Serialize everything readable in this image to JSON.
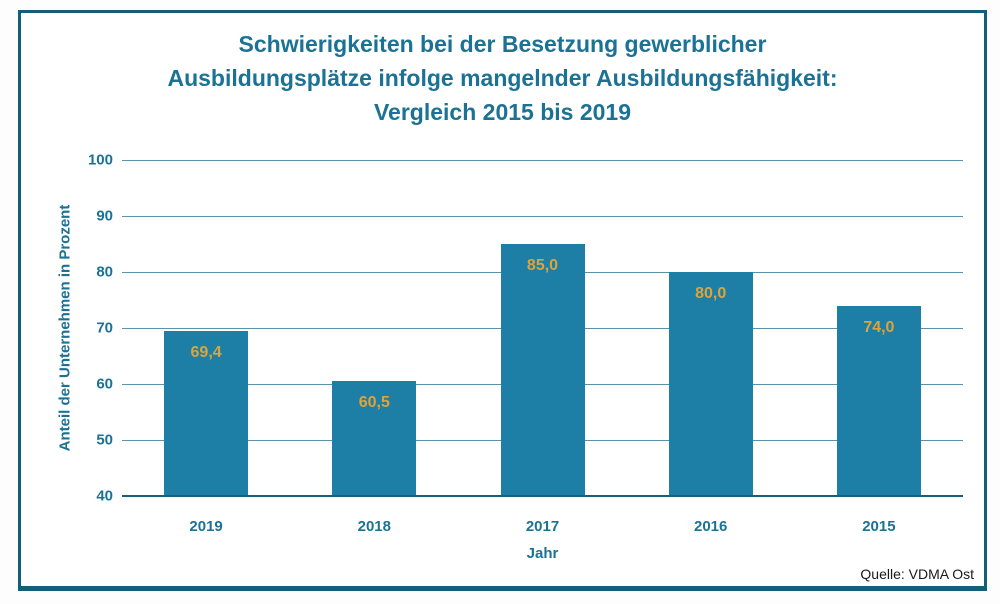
{
  "title": {
    "lines": [
      "Schwierigkeiten bei der Besetzung gewerblicher",
      "Ausbildungsplätze infolge mangelnder Ausbildungsfähigkeit:",
      "Vergleich 2015 bis 2019"
    ],
    "color": "#1b7295"
  },
  "chart_data": {
    "type": "bar",
    "title": "Schwierigkeiten bei der Besetzung gewerblicher Ausbildungsplätze infolge mangelnder Ausbildungsfähigkeit: Vergleich 2015 bis 2019",
    "categories": [
      "2019",
      "2018",
      "2017",
      "2016",
      "2015"
    ],
    "values": [
      69.4,
      60.5,
      85.0,
      80.0,
      74.0
    ],
    "value_labels": [
      "69,4",
      "60,5",
      "85,0",
      "80,0",
      "74,0"
    ],
    "xlabel": "Jahr",
    "ylabel": "Anteil der Unternehmen in Prozent",
    "ylim": [
      40,
      100
    ],
    "yticks": [
      100,
      90,
      80,
      70,
      60,
      50,
      40
    ],
    "grid": true,
    "legend": "none",
    "bar_color": "#1d7ea6",
    "value_label_color": "#dda43c",
    "axis_text_color": "#1b7295",
    "gridline_color": "#5a92aa",
    "baseline_color": "#16607c",
    "frame_color": "#155e78"
  },
  "source": {
    "label": "Quelle: VDMA Ost",
    "color": "#1a1a1a"
  }
}
